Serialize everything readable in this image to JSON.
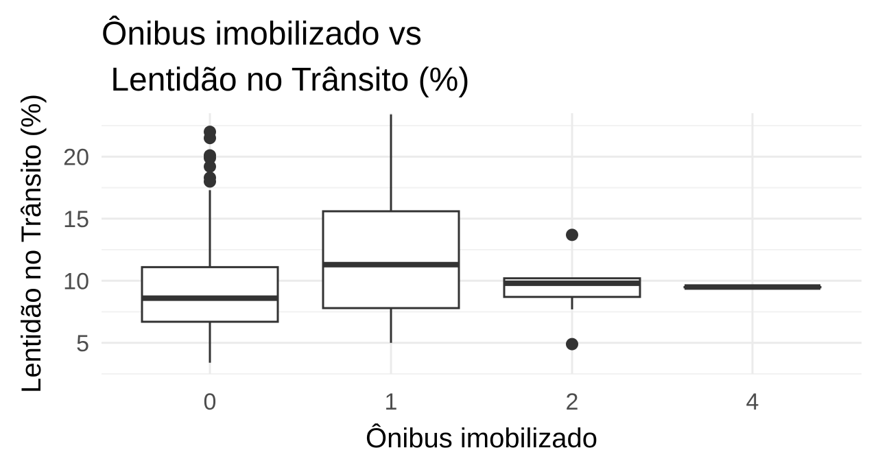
{
  "chart_data": {
    "type": "box",
    "title_lines": [
      "Ônibus imobilizado vs",
      " Lentidão no Trânsito (%)"
    ],
    "xlabel": "Ônibus imobilizado",
    "ylabel": "Lentidão no Trânsito (%)",
    "ylim": [
      2.5,
      23.5
    ],
    "y_ticks": [
      5,
      10,
      15,
      20
    ],
    "grid": true,
    "colors": {
      "box_line": "#333333",
      "box_fill": "#ffffff",
      "grid": "#ebebeb",
      "tick_text": "#4d4d4d"
    },
    "categories": [
      "0",
      "1",
      "2",
      "4"
    ],
    "boxes": [
      {
        "category": "0",
        "whisker_low": 3.4,
        "q1": 6.7,
        "median": 8.6,
        "q3": 11.1,
        "whisker_high": 17.3,
        "outliers": [
          18.0,
          18.3,
          19.2,
          19.9,
          20.1,
          21.5,
          22.0
        ]
      },
      {
        "category": "1",
        "whisker_low": 5.0,
        "q1": 7.8,
        "median": 11.3,
        "q3": 15.6,
        "whisker_high": 23.4,
        "outliers": []
      },
      {
        "category": "2",
        "whisker_low": 7.7,
        "q1": 8.7,
        "median": 9.8,
        "q3": 10.2,
        "whisker_high": 10.2,
        "outliers": [
          13.7,
          4.9
        ]
      },
      {
        "category": "4",
        "whisker_low": 9.5,
        "q1": 9.5,
        "median": 9.5,
        "q3": 9.5,
        "whisker_high": 9.5,
        "outliers": []
      }
    ]
  }
}
